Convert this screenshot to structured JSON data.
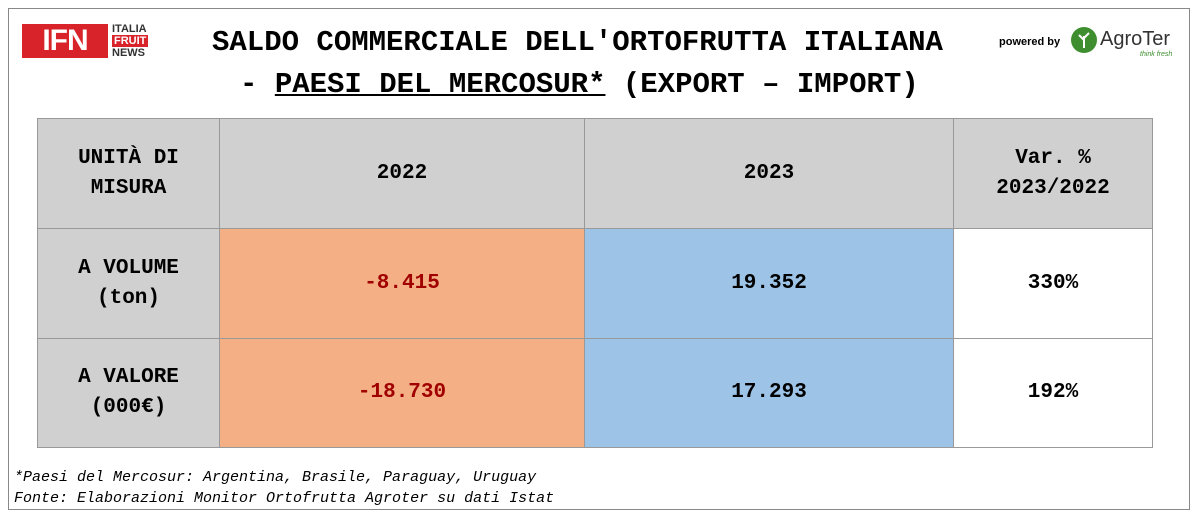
{
  "header": {
    "logo": {
      "mark": "IFN",
      "lines": [
        "ITALIA",
        "FRUIT",
        "NEWS"
      ]
    },
    "title_line1": "SALDO COMMERCIALE DELL'ORTOFRUTTA ITALIANA",
    "title_line2": {
      "prefix": "-",
      "underlined": "PAESI DEL MERCOSUR*",
      "suffix": "(EXPORT – IMPORT)"
    },
    "powered_by": "powered by",
    "partner": {
      "name": "AgroTer",
      "tagline": "think fresh"
    }
  },
  "table": {
    "header": [
      [
        "UNITÀ DI",
        "MISURA"
      ],
      [
        "2022"
      ],
      [
        "2023"
      ],
      [
        "Var. %",
        "2023/2022"
      ]
    ],
    "rows": [
      [
        [
          "A VOLUME",
          "(ton)"
        ],
        "-8.415",
        "19.352",
        "330%"
      ],
      [
        [
          "A VALORE",
          "(000€)"
        ],
        "-18.730",
        "17.293",
        "192%"
      ]
    ]
  },
  "notes": [
    "*Paesi del Mercosur: Argentina, Brasile, Paraguay, Uruguay",
    "Fonte: Elaborazioni Monitor Ortofrutta Agroter su dati Istat"
  ]
}
